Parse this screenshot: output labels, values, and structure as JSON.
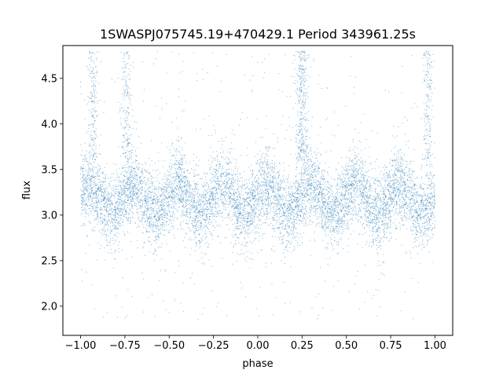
{
  "chart_data": {
    "type": "scatter",
    "title": "1SWASPJ075745.19+470429.1 Period 343961.25s",
    "xlabel": "phase",
    "ylabel": "flux",
    "xlim": [
      -1.1,
      1.1
    ],
    "ylim": [
      1.68,
      4.86
    ],
    "xticks": [
      -1.0,
      -0.75,
      -0.5,
      -0.25,
      0.0,
      0.25,
      0.5,
      0.75,
      1.0
    ],
    "xtick_labels": [
      "−1.00",
      "−0.75",
      "−0.50",
      "−0.25",
      "0.00",
      "0.25",
      "0.50",
      "0.75",
      "1.00"
    ],
    "yticks": [
      2.0,
      2.5,
      3.0,
      3.5,
      4.0,
      4.5
    ],
    "ytick_labels": [
      "2.0",
      "2.5",
      "3.0",
      "3.5",
      "4.0",
      "4.5"
    ],
    "grid": false,
    "marker_color": "#1f77b4",
    "series": [
      {
        "x_range": [
          -1.0,
          1.0
        ],
        "dense_band": [
          2.75,
          3.6
        ],
        "envelope": [
          1.85,
          4.8
        ],
        "low_flux_clusters_phase": [
          -0.82,
          -0.57,
          -0.32,
          -0.07,
          0.18,
          0.43,
          0.68,
          0.93
        ],
        "high_flux_clusters_phase": [
          -0.95,
          -0.7,
          -0.45,
          -0.2,
          0.05,
          0.3,
          0.55,
          0.8
        ],
        "bright_spikes_phase": [
          -0.93,
          -0.74,
          0.24,
          0.26,
          0.96
        ]
      }
    ]
  }
}
